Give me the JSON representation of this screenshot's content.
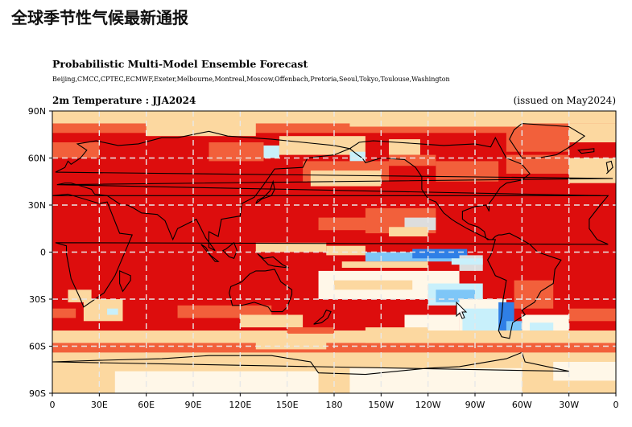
{
  "page": {
    "title": "全球季节性气候最新通报"
  },
  "figure": {
    "title": "Probabilistic Multi-Model Ensemble Forecast",
    "centres": "Beijing,CMCC,CPTEC,ECMWF,Exeter,Melbourne,Montreal,Moscow,Offenbach,Pretoria,Seoul,Tokyo,Toulouse,Washington",
    "variable": "2m Temperature : JJA2024",
    "issued": "(issued on May2024)"
  },
  "map": {
    "lat_ticks": [
      "90N",
      "60N",
      "30N",
      "0",
      "30S",
      "60S",
      "90S"
    ],
    "lon_ticks": [
      "0",
      "30E",
      "60E",
      "90E",
      "120E",
      "150E",
      "180",
      "150W",
      "120W",
      "90W",
      "60W",
      "30W",
      "0"
    ],
    "colors": {
      "strong_above": "#dd0d0d",
      "above": "#f2603b",
      "moderate_above": "#f7a46a",
      "weak_above": "#fcd8a0",
      "neutral": "#fff7e8",
      "near_normal": "#dddddd",
      "weak_below": "#c8f0fb",
      "below": "#7ec6f7",
      "strong_below": "#2f7fe6",
      "coastline": "#000000",
      "gridline": "#e8e8e8"
    }
  }
}
